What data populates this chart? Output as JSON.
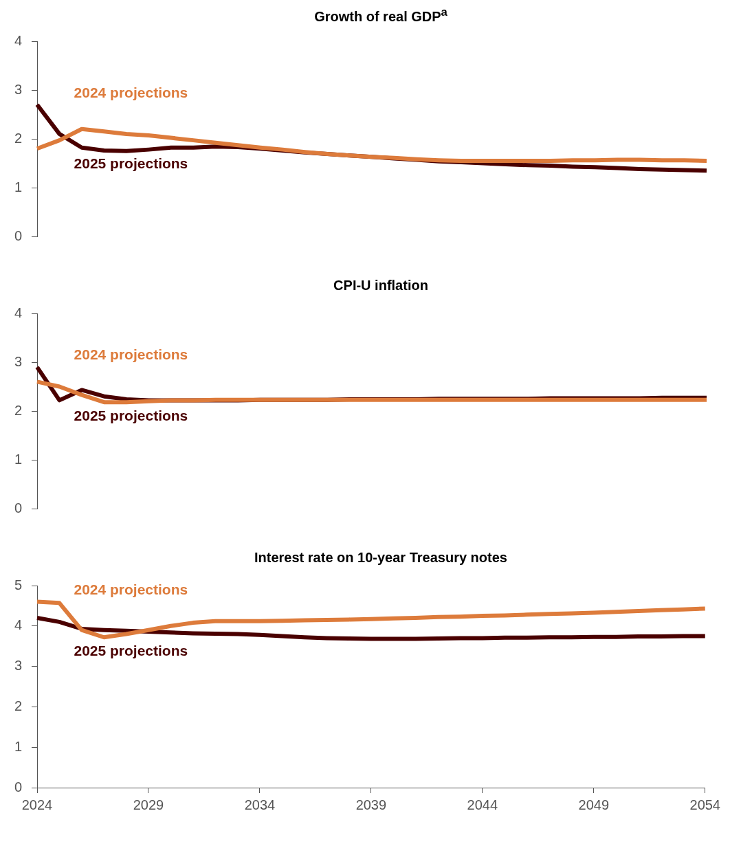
{
  "chart_data": [
    {
      "type": "line",
      "title": "Growth of real GDP$^{a}$",
      "x": [
        2024,
        2025,
        2026,
        2027,
        2028,
        2029,
        2030,
        2031,
        2032,
        2033,
        2034,
        2035,
        2036,
        2037,
        2038,
        2039,
        2040,
        2041,
        2042,
        2043,
        2044,
        2045,
        2046,
        2047,
        2048,
        2049,
        2050,
        2051,
        2052,
        2053,
        2054
      ],
      "xlim": [
        2024,
        2054
      ],
      "xticks": [
        2024,
        2029,
        2034,
        2039,
        2044,
        2049,
        2054
      ],
      "ylim": [
        0,
        4
      ],
      "yticks": [
        0,
        1,
        2,
        3,
        4
      ],
      "tick_labels": "y",
      "series": [
        {
          "name": "2024 projections",
          "color": "#dd7b3b",
          "values": [
            1.8,
            1.97,
            2.2,
            2.15,
            2.1,
            2.07,
            2.02,
            1.97,
            1.92,
            1.87,
            1.82,
            1.78,
            1.73,
            1.69,
            1.66,
            1.63,
            1.61,
            1.58,
            1.56,
            1.55,
            1.55,
            1.55,
            1.55,
            1.55,
            1.56,
            1.56,
            1.57,
            1.57,
            1.56,
            1.56,
            1.55
          ]
        },
        {
          "name": "2025 projections",
          "color": "#4a0000",
          "values": [
            2.7,
            2.1,
            1.82,
            1.76,
            1.75,
            1.78,
            1.82,
            1.82,
            1.84,
            1.83,
            1.8,
            1.76,
            1.72,
            1.69,
            1.66,
            1.63,
            1.6,
            1.57,
            1.54,
            1.52,
            1.5,
            1.48,
            1.46,
            1.45,
            1.43,
            1.42,
            1.4,
            1.38,
            1.37,
            1.36,
            1.35
          ]
        }
      ]
    },
    {
      "type": "line",
      "title": "CPI-U inflation",
      "x": [
        2024,
        2025,
        2026,
        2027,
        2028,
        2029,
        2030,
        2031,
        2032,
        2033,
        2034,
        2035,
        2036,
        2037,
        2038,
        2039,
        2040,
        2041,
        2042,
        2043,
        2044,
        2045,
        2046,
        2047,
        2048,
        2049,
        2050,
        2051,
        2052,
        2053,
        2054
      ],
      "xlim": [
        2024,
        2054
      ],
      "xticks": [
        2024,
        2029,
        2034,
        2039,
        2044,
        2049,
        2054
      ],
      "ylim": [
        0,
        4
      ],
      "yticks": [
        0,
        1,
        2,
        3,
        4
      ],
      "tick_labels": "y",
      "series": [
        {
          "name": "2024 projections",
          "color": "#dd7b3b",
          "values": [
            2.6,
            2.5,
            2.33,
            2.18,
            2.18,
            2.2,
            2.22,
            2.22,
            2.23,
            2.23,
            2.23,
            2.23,
            2.23,
            2.23,
            2.23,
            2.23,
            2.23,
            2.23,
            2.23,
            2.23,
            2.23,
            2.23,
            2.23,
            2.23,
            2.23,
            2.23,
            2.23,
            2.23,
            2.23,
            2.23,
            2.23
          ]
        },
        {
          "name": "2025 projections",
          "color": "#4a0000",
          "values": [
            2.9,
            2.22,
            2.43,
            2.3,
            2.24,
            2.22,
            2.22,
            2.22,
            2.22,
            2.22,
            2.23,
            2.23,
            2.23,
            2.23,
            2.24,
            2.24,
            2.24,
            2.24,
            2.25,
            2.25,
            2.25,
            2.25,
            2.25,
            2.26,
            2.26,
            2.26,
            2.26,
            2.26,
            2.27,
            2.27,
            2.27
          ]
        }
      ]
    },
    {
      "type": "line",
      "title": "Interest rate on 10-year Treasury notes",
      "x": [
        2024,
        2025,
        2026,
        2027,
        2028,
        2029,
        2030,
        2031,
        2032,
        2033,
        2034,
        2035,
        2036,
        2037,
        2038,
        2039,
        2040,
        2041,
        2042,
        2043,
        2044,
        2045,
        2046,
        2047,
        2048,
        2049,
        2050,
        2051,
        2052,
        2053,
        2054
      ],
      "xlim": [
        2024,
        2054
      ],
      "xticks": [
        2024,
        2029,
        2034,
        2039,
        2044,
        2049,
        2054
      ],
      "ylim": [
        0,
        5
      ],
      "yticks": [
        0,
        1,
        2,
        3,
        4,
        5
      ],
      "series": [
        {
          "name": "2024 projections",
          "color": "#dd7b3b",
          "values": [
            4.6,
            4.57,
            3.9,
            3.72,
            3.8,
            3.9,
            4.0,
            4.08,
            4.12,
            4.12,
            4.12,
            4.13,
            4.14,
            4.15,
            4.16,
            4.17,
            4.19,
            4.2,
            4.22,
            4.23,
            4.25,
            4.26,
            4.28,
            4.3,
            4.31,
            4.33,
            4.35,
            4.37,
            4.39,
            4.41,
            4.43
          ]
        },
        {
          "name": "2025 projections",
          "color": "#4a0000",
          "values": [
            4.2,
            4.1,
            3.93,
            3.9,
            3.88,
            3.86,
            3.84,
            3.82,
            3.81,
            3.8,
            3.78,
            3.75,
            3.72,
            3.7,
            3.69,
            3.68,
            3.68,
            3.68,
            3.69,
            3.7,
            3.7,
            3.71,
            3.71,
            3.72,
            3.72,
            3.73,
            3.73,
            3.74,
            3.74,
            3.75,
            3.75
          ]
        }
      ]
    }
  ]
}
